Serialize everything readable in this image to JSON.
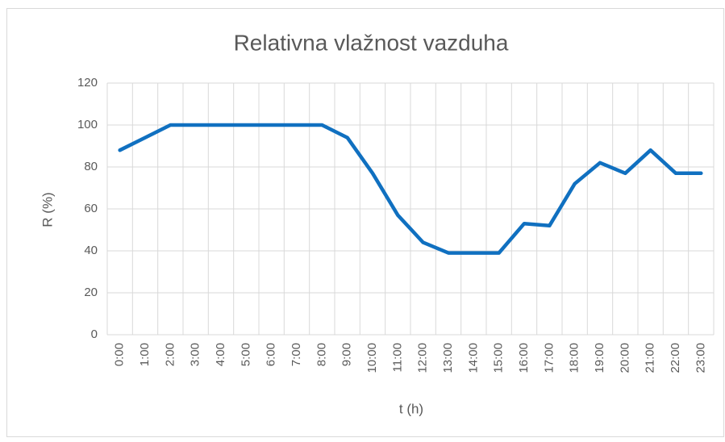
{
  "chart_data": {
    "type": "line",
    "title": "Relativna vlažnost vazduha",
    "x_label": "t (h)",
    "y_label": "R (%)",
    "categories": [
      "0:00",
      "1:00",
      "2:00",
      "3:00",
      "4:00",
      "5:00",
      "6:00",
      "7:00",
      "8:00",
      "9:00",
      "10:00",
      "11:00",
      "12:00",
      "13:00",
      "14:00",
      "15:00",
      "16:00",
      "17:00",
      "18:00",
      "19:00",
      "20:00",
      "21:00",
      "22:00",
      "23:00"
    ],
    "series": [
      {
        "name": "R",
        "color": "#1070c0",
        "values": [
          88,
          94,
          100,
          100,
          100,
          100,
          100,
          100,
          100,
          94,
          77,
          57,
          44,
          39,
          39,
          39,
          53,
          52,
          72,
          82,
          77,
          88,
          77,
          77
        ]
      }
    ],
    "ylim": [
      0,
      120
    ],
    "yticks": [
      0,
      20,
      40,
      60,
      80,
      100,
      120
    ],
    "grid": true,
    "legend": false
  }
}
